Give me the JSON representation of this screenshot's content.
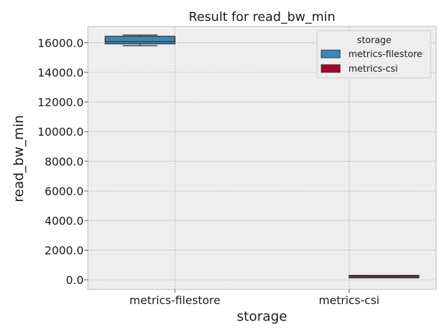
{
  "chart_data": {
    "type": "box",
    "title": "Result for read_bw_min",
    "xlabel": "storage",
    "ylabel": "read_bw_min",
    "categories": [
      "metrics-filestore",
      "metrics-csi"
    ],
    "ylim": [
      -650,
      17100
    ],
    "yticks": [
      0,
      2000,
      4000,
      6000,
      8000,
      10000,
      12000,
      14000,
      16000
    ],
    "ytick_labels": [
      "0.0",
      "2000.0",
      "4000.0",
      "6000.0",
      "8000.0",
      "10000.0",
      "12000.0",
      "14000.0",
      "16000.0"
    ],
    "grid": true,
    "legend": {
      "title": "storage",
      "position": "top-right",
      "entries": [
        "metrics-filestore",
        "metrics-csi"
      ]
    },
    "series": [
      {
        "name": "metrics-filestore",
        "color": "#348ABD",
        "whisker_low": 15800,
        "q1": 15930,
        "median": 16080,
        "q3": 16430,
        "whisker_high": 16520
      },
      {
        "name": "metrics-csi",
        "color": "#A60628",
        "whisker_low": 140,
        "q1": 140,
        "median": 200,
        "q3": 300,
        "whisker_high": 300
      }
    ]
  }
}
